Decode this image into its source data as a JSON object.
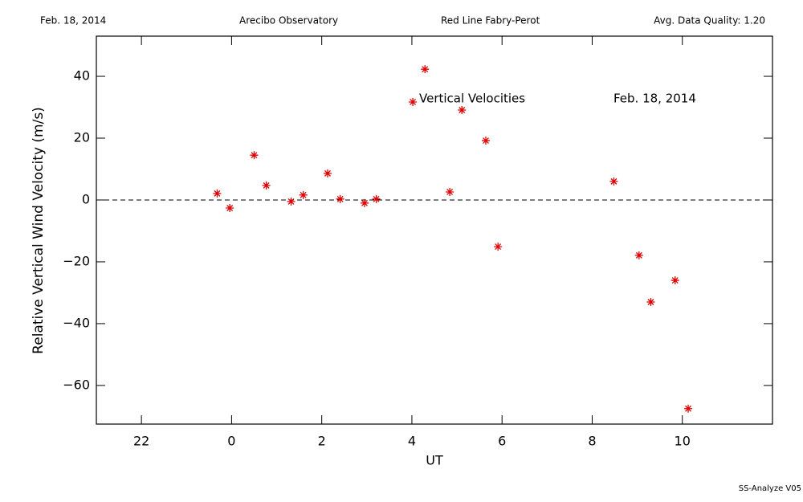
{
  "header": {
    "date": "Feb. 18, 2014",
    "site": "Arecibo Observatory",
    "instrument": "Red Line Fabry-Perot",
    "quality": "Avg. Data Quality: 1.20"
  },
  "footer": "SS-Analyze V05",
  "chart_data": {
    "type": "scatter",
    "xlabel": "UT",
    "ylabel": "Relative Vertical Wind Velocity (m/s)",
    "annotations": [
      "Vertical Velocities",
      "Feb. 18, 2014"
    ],
    "series": [
      {
        "name": "Vertical Velocities",
        "color": "#e00000",
        "x": [
          -0.32,
          -0.04,
          0.5,
          0.77,
          1.32,
          1.59,
          2.13,
          2.41,
          2.95,
          3.21,
          4.02,
          4.29,
          4.84,
          5.11,
          5.64,
          5.91,
          8.48,
          9.04,
          9.3,
          9.84,
          10.13
        ],
        "values": [
          2.1,
          -2.6,
          14.5,
          4.7,
          -0.5,
          1.6,
          8.6,
          0.3,
          -1.0,
          0.3,
          31.7,
          42.3,
          2.6,
          29.1,
          19.2,
          -15.1,
          6.0,
          -17.9,
          -33.0,
          -26.0,
          -67.5
        ]
      }
    ],
    "xlim": [
      -3,
      12
    ],
    "xticks": [
      {
        "value": -2,
        "label": "22"
      },
      0,
      2,
      4,
      6,
      8,
      10
    ],
    "ylim": [
      -72.5,
      53
    ],
    "yticks": [
      -60,
      -40,
      -20,
      0,
      20,
      40
    ],
    "hline": 0
  }
}
